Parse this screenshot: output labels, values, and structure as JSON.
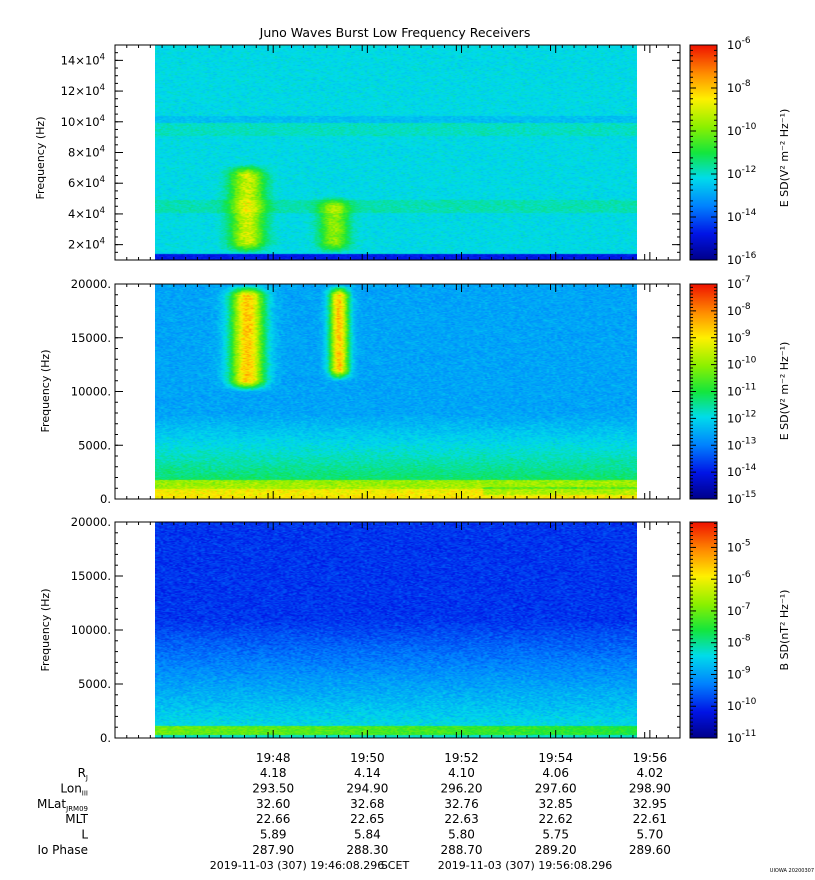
{
  "figure": {
    "title": "Juno Waves Burst Low Frequency Receivers",
    "watermark": "UIOWA 20200307"
  },
  "chart_data": [
    {
      "type": "heatmap",
      "ylabel": "Frequency (Hz)",
      "ytick_labels": [
        {
          "value": 140000,
          "mant": "14×10",
          "exp": "4"
        },
        {
          "value": 120000,
          "mant": "12×10",
          "exp": "4"
        },
        {
          "value": 100000,
          "mant": "10×10",
          "exp": "4"
        },
        {
          "value": 80000,
          "mant": "8×10",
          "exp": "4"
        },
        {
          "value": 60000,
          "mant": "6×10",
          "exp": "4"
        },
        {
          "value": 40000,
          "mant": "4×10",
          "exp": "4"
        },
        {
          "value": 20000,
          "mant": "2×10",
          "exp": "4"
        }
      ],
      "ylim": [
        10000,
        150000
      ],
      "colorbar": {
        "label": "E SD(V² m⁻² Hz⁻¹)",
        "range_exp": [
          -16,
          -6
        ],
        "ticks": [
          {
            "value": -6,
            "base": "10",
            "exp": "-6"
          },
          {
            "value": -8,
            "base": "10",
            "exp": "-8"
          },
          {
            "value": -10,
            "base": "10",
            "exp": "-10"
          },
          {
            "value": -12,
            "base": "10",
            "exp": "-12"
          },
          {
            "value": -14,
            "base": "10",
            "exp": "-14"
          },
          {
            "value": -16,
            "base": "10",
            "exp": "-16"
          }
        ]
      }
    },
    {
      "type": "heatmap",
      "ylabel": "Frequency (Hz)",
      "ytick_labels": [
        {
          "value": 20000,
          "label": "20000."
        },
        {
          "value": 15000,
          "label": "15000."
        },
        {
          "value": 10000,
          "label": "10000."
        },
        {
          "value": 5000,
          "label": "5000."
        },
        {
          "value": 0,
          "label": "0."
        }
      ],
      "ylim": [
        0,
        20000
      ],
      "colorbar": {
        "label": "E SD(V² m⁻² Hz⁻¹)",
        "range_exp": [
          -15,
          -7
        ],
        "ticks": [
          {
            "value": -7,
            "base": "10",
            "exp": "-7"
          },
          {
            "value": -8,
            "base": "10",
            "exp": "-8"
          },
          {
            "value": -9,
            "base": "10",
            "exp": "-9"
          },
          {
            "value": -10,
            "base": "10",
            "exp": "-10"
          },
          {
            "value": -11,
            "base": "10",
            "exp": "-11"
          },
          {
            "value": -12,
            "base": "10",
            "exp": "-12"
          },
          {
            "value": -13,
            "base": "10",
            "exp": "-13"
          },
          {
            "value": -14,
            "base": "10",
            "exp": "-14"
          },
          {
            "value": -15,
            "base": "10",
            "exp": "-15"
          }
        ]
      }
    },
    {
      "type": "heatmap",
      "ylabel": "Frequency (Hz)",
      "ytick_labels": [
        {
          "value": 20000,
          "label": "20000."
        },
        {
          "value": 15000,
          "label": "15000."
        },
        {
          "value": 10000,
          "label": "10000."
        },
        {
          "value": 5000,
          "label": "5000."
        },
        {
          "value": 0,
          "label": "0."
        }
      ],
      "ylim": [
        0,
        20000
      ],
      "colorbar": {
        "label": "B SD(nT² Hz⁻¹)",
        "range_exp": [
          -11,
          -4.2
        ],
        "ticks": [
          {
            "value": -5,
            "base": "10",
            "exp": "-5"
          },
          {
            "value": -6,
            "base": "10",
            "exp": "-6"
          },
          {
            "value": -7,
            "base": "10",
            "exp": "-7"
          },
          {
            "value": -8,
            "base": "10",
            "exp": "-8"
          },
          {
            "value": -9,
            "base": "10",
            "exp": "-9"
          },
          {
            "value": -10,
            "base": "10",
            "exp": "-10"
          },
          {
            "value": -11,
            "base": "10",
            "exp": "-11"
          }
        ]
      }
    }
  ],
  "x_axis": {
    "range_minutes": [
      -1.5,
      10.5
    ],
    "data_extent_minutes": [
      0.0,
      10.0
    ],
    "ticks": [
      {
        "minute": 1.86,
        "label": "19:48"
      },
      {
        "minute": 3.86,
        "label": "19:50"
      },
      {
        "minute": 5.86,
        "label": "19:52"
      },
      {
        "minute": 7.86,
        "label": "19:54"
      },
      {
        "minute": 9.86,
        "label": "19:56"
      }
    ]
  },
  "ephemeris": {
    "rows": [
      {
        "label": "R",
        "sub": "J",
        "values": [
          "4.18",
          "4.14",
          "4.10",
          "4.06",
          "4.02"
        ]
      },
      {
        "label": "Lon",
        "sub": "III",
        "values": [
          "293.50",
          "294.90",
          "296.20",
          "297.60",
          "298.90"
        ]
      },
      {
        "label": "MLat",
        "sub": "JRM09",
        "values": [
          "32.60",
          "32.68",
          "32.76",
          "32.85",
          "32.95"
        ]
      },
      {
        "label": "MLT",
        "sub": "",
        "values": [
          "22.66",
          "22.65",
          "22.63",
          "22.62",
          "22.61"
        ]
      },
      {
        "label": "L",
        "sub": "",
        "values": [
          "5.89",
          "5.84",
          "5.80",
          "5.75",
          "5.70"
        ]
      },
      {
        "label": "Io Phase",
        "sub": "",
        "values": [
          "287.90",
          "288.30",
          "288.70",
          "289.20",
          "289.60"
        ]
      }
    ]
  },
  "time_range": {
    "start": "2019-11-03 (307) 19:46:08.296",
    "scet": "SCET",
    "end": "2019-11-03 (307) 19:56:08.296"
  }
}
